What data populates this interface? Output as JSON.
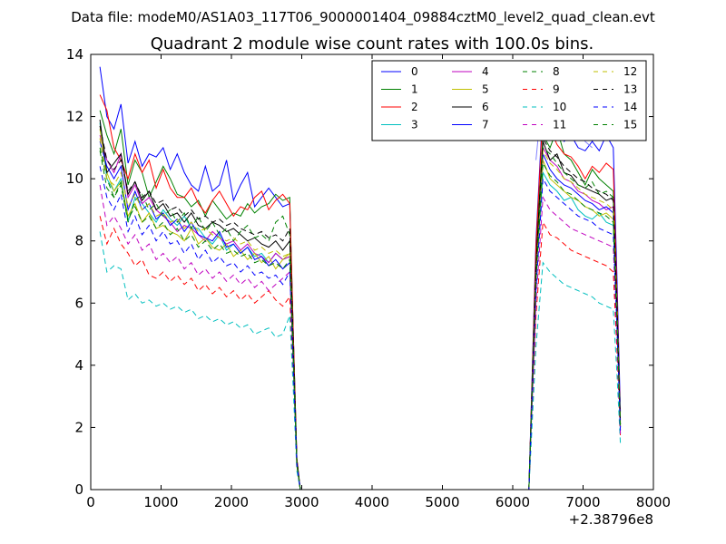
{
  "chart_data": {
    "type": "line",
    "suptitle": "Data file: modeM0/AS1A03_117T06_9000001404_09884cztM0_level2_quad_clean.evt",
    "title": "Quadrant 2 module wise count rates with 100.0s bins.",
    "xlabel": "",
    "ylabel": "",
    "x_offset_label": "+2.38796e8",
    "xlim": [
      0,
      8000
    ],
    "ylim": [
      0,
      14
    ],
    "x_ticks": [
      "0",
      "1000",
      "2000",
      "3000",
      "4000",
      "5000",
      "6000",
      "7000",
      "8000"
    ],
    "y_ticks": [
      "0",
      "2",
      "4",
      "6",
      "8",
      "10",
      "12",
      "14"
    ],
    "legend_position": "top-right",
    "grid": false,
    "segment1_x": [
      130,
      230,
      330,
      430,
      530,
      630,
      730,
      830,
      930,
      1030,
      1130,
      1230,
      1330,
      1430,
      1530,
      1630,
      1730,
      1830,
      1930,
      2030,
      2130,
      2230,
      2330,
      2430,
      2530,
      2630,
      2730,
      2830,
      2880,
      2930,
      2980,
      3030
    ],
    "gap_x": [
      3030,
      6230
    ],
    "segment2_x": [
      6230,
      6330,
      6430,
      6530,
      6630,
      6730,
      6830,
      6930,
      7030,
      7130,
      7230,
      7330,
      7430,
      7480,
      7530
    ],
    "series": [
      {
        "name": "0",
        "color": "#0000ff",
        "style": "solid",
        "seg1": [
          13.6,
          12.0,
          11.6,
          12.4,
          10.5,
          11.2,
          10.4,
          10.8,
          10.7,
          11.0,
          10.3,
          10.8,
          10.2,
          9.8,
          9.6,
          10.4,
          9.6,
          9.8,
          10.6,
          9.3,
          9.8,
          10.2,
          9.1,
          9.4,
          9.7,
          9.4,
          9.1,
          9.2,
          5.0,
          1.0,
          0.0,
          0.0
        ],
        "seg2": [
          0.2,
          8.0,
          12.4,
          11.5,
          12.0,
          11.2,
          11.4,
          11.0,
          10.9,
          11.2,
          10.9,
          11.4,
          11.0,
          7.0,
          2.5
        ]
      },
      {
        "name": "1",
        "color": "#008000",
        "style": "solid",
        "seg1": [
          12.2,
          11.4,
          10.8,
          11.6,
          9.8,
          10.6,
          10.2,
          9.4,
          9.9,
          10.4,
          10.0,
          9.5,
          9.4,
          9.1,
          9.3,
          8.8,
          9.3,
          9.0,
          8.7,
          8.9,
          8.8,
          9.2,
          8.9,
          9.1,
          9.2,
          9.5,
          9.3,
          9.4,
          5.0,
          1.0,
          0.0,
          0.0
        ],
        "seg2": [
          0.2,
          7.5,
          11.4,
          11.0,
          11.6,
          10.8,
          10.6,
          10.2,
          9.8,
          10.3,
          10.0,
          9.8,
          9.6,
          6.0,
          2.0
        ]
      },
      {
        "name": "2",
        "color": "#ff0000",
        "style": "solid",
        "seg1": [
          12.7,
          12.2,
          11.0,
          10.6,
          10.0,
          10.8,
          10.2,
          10.6,
          9.7,
          10.3,
          9.7,
          9.4,
          9.4,
          9.7,
          9.2,
          8.9,
          9.3,
          9.6,
          9.2,
          8.8,
          9.1,
          9.0,
          9.4,
          9.6,
          9.0,
          9.3,
          9.5,
          9.2,
          5.0,
          1.0,
          0.0,
          0.0
        ],
        "seg2": [
          0.2,
          7.8,
          12.2,
          11.6,
          11.1,
          10.8,
          10.7,
          10.4,
          10.0,
          10.4,
          10.2,
          10.5,
          10.3,
          6.5,
          2.2
        ]
      },
      {
        "name": "3",
        "color": "#00bfbf",
        "style": "solid",
        "seg1": [
          11.8,
          10.0,
          9.6,
          10.0,
          8.6,
          9.4,
          9.2,
          8.9,
          8.6,
          9.0,
          8.7,
          8.5,
          8.8,
          8.4,
          8.4,
          8.1,
          7.9,
          8.2,
          7.7,
          7.9,
          7.6,
          7.8,
          7.5,
          7.6,
          7.3,
          7.6,
          7.4,
          7.5,
          4.2,
          0.8,
          0.0,
          0.0
        ],
        "seg2": [
          0.2,
          6.8,
          10.2,
          9.8,
          9.6,
          9.3,
          9.4,
          9.0,
          8.8,
          8.7,
          8.9,
          8.6,
          8.5,
          5.5,
          1.8
        ]
      },
      {
        "name": "4",
        "color": "#bf00bf",
        "style": "solid",
        "seg1": [
          11.4,
          10.6,
          10.2,
          10.8,
          9.4,
          9.8,
          9.2,
          9.4,
          9.0,
          8.8,
          8.6,
          8.3,
          8.5,
          8.4,
          8.2,
          8.0,
          8.3,
          8.1,
          7.9,
          8.0,
          7.7,
          7.9,
          7.6,
          7.5,
          7.3,
          7.6,
          7.4,
          7.5,
          4.3,
          0.8,
          0.0,
          0.0
        ],
        "seg2": [
          0.2,
          7.0,
          11.0,
          10.6,
          10.4,
          10.0,
          9.9,
          9.6,
          9.5,
          9.3,
          9.2,
          9.0,
          9.1,
          5.8,
          2.0
        ]
      },
      {
        "name": "5",
        "color": "#bfbf00",
        "style": "solid",
        "seg1": [
          11.6,
          10.2,
          9.6,
          9.9,
          8.8,
          9.2,
          8.6,
          8.9,
          8.4,
          8.5,
          8.3,
          8.2,
          8.0,
          8.4,
          7.9,
          8.1,
          7.8,
          7.7,
          7.9,
          7.5,
          7.7,
          7.4,
          7.6,
          7.3,
          7.5,
          7.1,
          7.4,
          7.6,
          4.2,
          0.8,
          0.0,
          0.0
        ],
        "seg2": [
          0.2,
          6.9,
          10.6,
          10.0,
          9.8,
          9.6,
          9.4,
          9.3,
          9.1,
          9.0,
          8.8,
          8.9,
          8.7,
          5.6,
          1.9
        ]
      },
      {
        "name": "6",
        "color": "#000000",
        "style": "solid",
        "seg1": [
          11.9,
          10.2,
          10.5,
          10.8,
          9.5,
          9.9,
          9.3,
          9.6,
          9.0,
          9.2,
          8.8,
          8.9,
          8.6,
          8.9,
          8.5,
          8.4,
          8.6,
          8.5,
          8.3,
          8.4,
          8.2,
          8.0,
          8.1,
          7.9,
          7.8,
          8.0,
          7.7,
          8.0,
          4.5,
          0.9,
          0.0,
          0.0
        ],
        "seg2": [
          0.2,
          7.2,
          11.2,
          10.6,
          10.8,
          10.2,
          10.1,
          9.8,
          9.7,
          9.6,
          9.5,
          9.3,
          9.4,
          6.0,
          2.1
        ]
      },
      {
        "name": "7",
        "color": "#0000ff",
        "style": "solid",
        "seg1": [
          11.2,
          10.4,
          10.0,
          10.4,
          9.0,
          9.6,
          9.0,
          9.2,
          8.7,
          8.9,
          8.5,
          8.7,
          8.3,
          8.6,
          8.2,
          8.1,
          8.0,
          8.3,
          7.8,
          7.9,
          7.6,
          7.8,
          7.4,
          7.5,
          7.2,
          7.4,
          7.1,
          7.3,
          4.2,
          0.8,
          0.0,
          0.0
        ],
        "seg2": [
          0.2,
          6.8,
          10.8,
          10.3,
          10.0,
          9.8,
          9.7,
          9.5,
          9.3,
          9.2,
          9.0,
          9.1,
          8.9,
          5.7,
          2.0
        ]
      },
      {
        "name": "8",
        "color": "#008000",
        "style": "dashed",
        "seg1": [
          11.0,
          10.0,
          9.4,
          9.8,
          8.6,
          9.3,
          9.5,
          9.0,
          9.2,
          8.8,
          9.0,
          8.6,
          8.9,
          8.4,
          8.8,
          8.3,
          8.6,
          8.2,
          8.4,
          8.0,
          8.3,
          8.5,
          8.1,
          8.2,
          8.0,
          8.6,
          8.8,
          8.2,
          4.6,
          0.9,
          0.0,
          0.0
        ],
        "seg2": [
          0.2,
          7.0,
          11.0,
          10.8,
          10.5,
          10.2,
          10.0,
          9.8,
          9.7,
          9.9,
          9.5,
          9.6,
          9.4,
          6.0,
          2.1
        ]
      },
      {
        "name": "9",
        "color": "#ff0000",
        "style": "dashed",
        "seg1": [
          8.8,
          7.9,
          8.4,
          7.9,
          7.6,
          7.2,
          7.4,
          6.9,
          6.8,
          7.0,
          6.7,
          6.9,
          6.6,
          6.8,
          6.4,
          6.6,
          6.3,
          6.5,
          6.2,
          6.4,
          6.1,
          6.3,
          6.0,
          6.2,
          6.4,
          6.1,
          5.9,
          6.2,
          3.6,
          0.7,
          0.0,
          0.0
        ],
        "seg2": [
          0.2,
          5.6,
          8.6,
          8.2,
          8.1,
          7.9,
          7.7,
          7.6,
          7.5,
          7.4,
          7.3,
          7.2,
          7.0,
          4.6,
          1.7
        ]
      },
      {
        "name": "10",
        "color": "#00bfbf",
        "style": "dashed",
        "seg1": [
          8.3,
          7.0,
          7.2,
          7.1,
          6.1,
          6.3,
          6.0,
          6.1,
          5.9,
          6.0,
          5.8,
          5.9,
          5.7,
          5.8,
          5.5,
          5.6,
          5.4,
          5.5,
          5.3,
          5.4,
          5.2,
          5.3,
          5.0,
          5.1,
          5.2,
          4.9,
          5.0,
          5.6,
          3.2,
          0.6,
          0.0,
          0.0
        ],
        "seg2": [
          0.2,
          4.6,
          7.3,
          7.0,
          6.8,
          6.6,
          6.5,
          6.4,
          6.3,
          6.2,
          6.0,
          5.9,
          5.8,
          3.8,
          1.5
        ]
      },
      {
        "name": "11",
        "color": "#bf00bf",
        "style": "dashed",
        "seg1": [
          9.8,
          8.5,
          8.8,
          8.4,
          7.9,
          8.2,
          7.7,
          7.9,
          7.4,
          7.6,
          7.3,
          7.5,
          7.1,
          7.3,
          6.9,
          7.1,
          6.8,
          7.0,
          6.7,
          6.9,
          6.6,
          6.8,
          6.5,
          6.7,
          6.4,
          6.6,
          6.8,
          7.0,
          4.0,
          0.8,
          0.0,
          0.0
        ],
        "seg2": [
          0.2,
          6.0,
          9.4,
          9.0,
          8.8,
          8.6,
          8.4,
          8.3,
          8.2,
          8.1,
          8.0,
          7.9,
          7.8,
          5.0,
          1.8
        ]
      },
      {
        "name": "12",
        "color": "#bfbf00",
        "style": "dashed",
        "seg1": [
          11.3,
          10.0,
          9.8,
          10.2,
          9.1,
          9.5,
          9.0,
          9.2,
          8.8,
          8.9,
          8.6,
          8.7,
          8.4,
          8.6,
          8.3,
          8.4,
          8.2,
          8.1,
          8.0,
          8.1,
          7.9,
          8.0,
          7.7,
          7.8,
          7.6,
          7.7,
          7.5,
          7.6,
          4.3,
          0.8,
          0.0,
          0.0
        ],
        "seg2": [
          0.2,
          6.9,
          10.9,
          10.5,
          10.3,
          10.0,
          9.9,
          9.7,
          9.5,
          9.4,
          9.3,
          9.2,
          9.0,
          5.8,
          2.0
        ]
      },
      {
        "name": "13",
        "color": "#000000",
        "style": "dashed",
        "seg1": [
          11.7,
          10.6,
          10.3,
          10.6,
          9.6,
          9.9,
          9.4,
          9.6,
          9.2,
          9.3,
          9.0,
          9.1,
          8.8,
          9.0,
          8.7,
          8.8,
          8.6,
          8.7,
          8.5,
          8.6,
          8.4,
          8.3,
          8.2,
          8.3,
          8.1,
          8.2,
          8.0,
          8.4,
          4.6,
          0.9,
          0.0,
          0.0
        ],
        "seg2": [
          0.2,
          7.2,
          11.3,
          10.9,
          10.7,
          10.4,
          10.2,
          10.0,
          9.9,
          9.7,
          9.6,
          9.5,
          9.3,
          6.0,
          2.1
        ]
      },
      {
        "name": "14",
        "color": "#0000ff",
        "style": "dashed",
        "seg1": [
          10.4,
          9.4,
          9.0,
          9.5,
          8.3,
          8.8,
          8.2,
          8.5,
          8.0,
          8.3,
          7.9,
          8.0,
          7.6,
          7.9,
          7.4,
          7.7,
          7.3,
          7.5,
          7.2,
          7.3,
          7.0,
          7.2,
          6.9,
          7.0,
          6.8,
          6.9,
          6.6,
          7.0,
          4.0,
          0.8,
          0.0,
          0.0
        ],
        "seg2": [
          0.2,
          6.4,
          10.0,
          9.6,
          9.4,
          9.2,
          9.0,
          8.8,
          8.7,
          8.6,
          8.4,
          8.3,
          8.2,
          5.3,
          1.9
        ]
      },
      {
        "name": "15",
        "color": "#008000",
        "style": "dashed",
        "seg1": [
          10.9,
          9.7,
          9.4,
          9.9,
          8.7,
          9.1,
          8.6,
          8.8,
          8.4,
          8.6,
          8.2,
          8.4,
          8.0,
          8.2,
          7.8,
          8.0,
          7.7,
          7.9,
          7.6,
          7.7,
          7.5,
          7.6,
          7.3,
          7.4,
          7.2,
          7.3,
          7.1,
          7.4,
          4.2,
          0.8,
          0.0,
          0.0
        ],
        "seg2": [
          0.2,
          6.7,
          10.5,
          10.1,
          9.9,
          9.6,
          9.5,
          9.3,
          9.1,
          9.0,
          8.9,
          8.8,
          8.6,
          5.5,
          2.0
        ]
      }
    ],
    "extra_lines": [
      {
        "color": "#8080ff",
        "style": "solid",
        "x": [
          6330,
          6430,
          6530,
          6630,
          6730,
          6830,
          6930,
          7030,
          7130
        ],
        "y": [
          10.6,
          12.9,
          12.2,
          12.4,
          12.7,
          12.1,
          11.6,
          11.2,
          11.0
        ]
      }
    ]
  }
}
